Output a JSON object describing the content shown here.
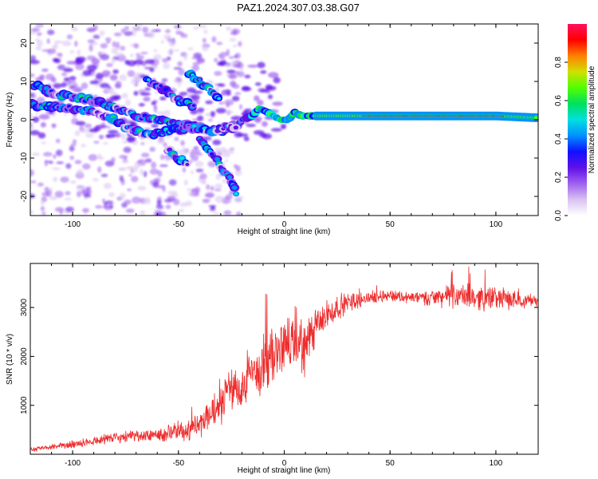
{
  "title": "PAZ1.2024.307.03.38.G07",
  "colors": {
    "snr_line": "#ee2b2b",
    "axis": "#000000",
    "colormap": [
      "#ffffff",
      "#d9c2f0",
      "#a060f0",
      "#6010e8",
      "#1010ff",
      "#0090ff",
      "#00e0e0",
      "#00e060",
      "#50ff00",
      "#d0e000",
      "#ff8000",
      "#ff0000",
      "#ff1060"
    ]
  },
  "chart_data": [
    {
      "type": "heatmap",
      "name": "spectrogram",
      "xlabel": "Height of straight line (km)",
      "ylabel": "Frequency (Hz)",
      "xlim": [
        -120,
        120
      ],
      "ylim": [
        -25,
        25
      ],
      "xticks": [
        -100,
        -50,
        0,
        50,
        100
      ],
      "yticks": [
        -20,
        -10,
        0,
        10,
        20
      ],
      "colorbar": {
        "label": "Normalized spectral amplitude",
        "range": [
          0,
          1
        ],
        "ticks": [
          0.0,
          0.2,
          0.4,
          0.6,
          0.8
        ]
      },
      "ridges": [
        {
          "x": [
            -118,
            -110,
            -100,
            -90,
            -80,
            -70,
            -60,
            -50,
            -40,
            -30,
            -25,
            -20
          ],
          "y": [
            9,
            7,
            6,
            5,
            3,
            1,
            0,
            -1,
            -2,
            -3,
            -2,
            -1
          ]
        },
        {
          "x": [
            -120,
            -100,
            -90,
            -80,
            -75,
            -65,
            -55,
            -45,
            -35,
            -28,
            -22
          ],
          "y": [
            4,
            3,
            2,
            0,
            -2,
            -4,
            -3,
            -2,
            -3,
            -2,
            -2
          ]
        },
        {
          "x": [
            -65,
            -60,
            -55,
            -50,
            -45,
            -42
          ],
          "y": [
            10,
            9,
            7,
            5,
            4,
            3
          ]
        },
        {
          "x": [
            -45,
            -40,
            -35,
            -30
          ],
          "y": [
            12,
            10,
            8,
            5
          ]
        },
        {
          "x": [
            -55,
            -50,
            -45
          ],
          "y": [
            -8,
            -10,
            -12
          ]
        },
        {
          "x": [
            -40,
            -35,
            -30,
            -25,
            -22
          ],
          "y": [
            -5,
            -8,
            -12,
            -16,
            -20
          ]
        },
        {
          "x": [
            -20,
            -15,
            -12,
            -8,
            -5,
            -2,
            2,
            5,
            8,
            12,
            15,
            25,
            40,
            60,
            80,
            100,
            120
          ],
          "y": [
            0,
            1,
            3,
            2,
            1,
            0,
            0,
            2,
            1,
            1,
            1,
            1,
            1,
            1,
            1,
            1,
            0.5
          ]
        }
      ]
    },
    {
      "type": "line",
      "name": "snr",
      "xlabel": "Height of straight line (km)",
      "ylabel": "SNR (10 * v/v)",
      "xlim": [
        -120,
        120
      ],
      "ylim": [
        0,
        3900
      ],
      "xticks": [
        -100,
        -50,
        0,
        50,
        100
      ],
      "yticks": [
        1000,
        2000,
        3000
      ],
      "series": [
        {
          "x": [
            -120,
            -110,
            -100,
            -90,
            -80,
            -70,
            -60,
            -50,
            -40,
            -30,
            -25,
            -20,
            -15,
            -10,
            -5,
            0,
            5,
            10,
            15,
            20,
            25,
            30,
            40,
            50,
            60,
            70,
            80,
            90,
            100,
            110,
            120
          ],
          "values": [
            100,
            140,
            200,
            280,
            350,
            350,
            400,
            450,
            600,
            1000,
            1400,
            1300,
            1650,
            1800,
            2000,
            2250,
            2300,
            2200,
            2600,
            2800,
            3000,
            3100,
            3200,
            3250,
            3200,
            3200,
            3250,
            3200,
            3200,
            3150,
            3150
          ],
          "noise": [
            60,
            60,
            90,
            110,
            150,
            150,
            180,
            250,
            350,
            450,
            550,
            550,
            700,
            800,
            700,
            700,
            800,
            700,
            500,
            400,
            300,
            250,
            150,
            150,
            150,
            200,
            300,
            300,
            300,
            200,
            150
          ]
        }
      ]
    }
  ]
}
